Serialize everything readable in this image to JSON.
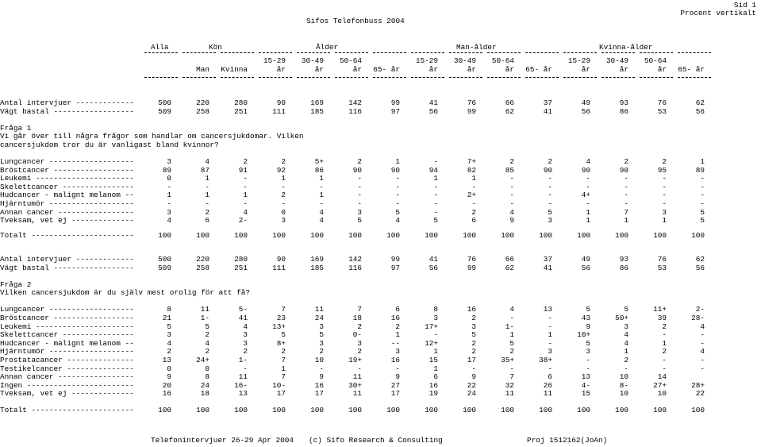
{
  "header": {
    "page_number": "Sid 1",
    "percent_label": "Procent vertikalt",
    "title": "Sifos Telefonbuss 2004"
  },
  "colgroups": {
    "alla": "Alla",
    "kon": "Kön",
    "alder": "Ålder",
    "man_alder": "Man-ålder",
    "kvinna_alder": "Kvinna-ålder"
  },
  "columns_top": [
    "",
    "",
    "",
    "15-29",
    "30-49",
    "50-64",
    "",
    "15-29",
    "30-49",
    "50-64",
    "",
    "15-29",
    "30-49",
    "50-64",
    ""
  ],
  "columns_bottom": [
    "",
    "Man",
    "Kvinna",
    "år",
    "år",
    "år",
    "65- år",
    "år",
    "år",
    "år",
    "65- år",
    "år",
    "år",
    "år",
    "65- år"
  ],
  "q1": {
    "intervjuer_label": "Antal intervjuer -------------",
    "intervjuer": [
      "500",
      "220",
      "280",
      "90",
      "169",
      "142",
      "99",
      "41",
      "76",
      "66",
      "37",
      "49",
      "93",
      "76",
      "62"
    ],
    "vagt_label": "Vägt bastal ------------------",
    "vagt": [
      "509",
      "258",
      "251",
      "111",
      "185",
      "116",
      "97",
      "56",
      "99",
      "62",
      "41",
      "56",
      "86",
      "53",
      "56"
    ],
    "fraga": "Fråga 1",
    "text1": "Vi går över till några frågor som handlar om cancersjukdomar. Vilken",
    "text2": "cancersjukdom tror du är vanligast bland kvinnor?",
    "rows": [
      {
        "label": "Lungcancer -------------------",
        "values": [
          "3",
          "4",
          "2",
          "2",
          "5+",
          "2",
          "1",
          "-",
          "7+",
          "2",
          "2",
          "4",
          "2",
          "2",
          "1"
        ]
      },
      {
        "label": "Bröstcancer ------------------",
        "values": [
          "89",
          "87",
          "91",
          "92",
          "86",
          "90",
          "90",
          "94",
          "82",
          "85",
          "90",
          "90",
          "90",
          "95",
          "89"
        ]
      },
      {
        "label": "Leukemi ----------------------",
        "values": [
          "0",
          "1",
          "-",
          "1",
          "1",
          "-",
          "-",
          "1",
          "1",
          "-",
          "-",
          "-",
          "-",
          "-",
          "-"
        ]
      },
      {
        "label": "Skelettcancer ----------------",
        "values": [
          "-",
          "-",
          "-",
          "-",
          "-",
          "-",
          "-",
          "-",
          "-",
          "-",
          "-",
          "-",
          "-",
          "-",
          "-"
        ]
      },
      {
        "label": "Hudcancer - malignt melanom --",
        "values": [
          "1",
          "1",
          "1",
          "2",
          "1",
          "-",
          "-",
          "-",
          "2+",
          "-",
          "-",
          "4+",
          "-",
          "-",
          "-"
        ]
      },
      {
        "label": "Hjärntumör -------------------",
        "values": [
          "-",
          "-",
          "-",
          "-",
          "-",
          "-",
          "-",
          "-",
          "-",
          "-",
          "-",
          "-",
          "-",
          "-",
          "-"
        ]
      },
      {
        "label": "Annan cancer -----------------",
        "values": [
          "3",
          "2",
          "4",
          "0",
          "4",
          "3",
          "5",
          "-",
          "2",
          "4",
          "5",
          "1",
          "7",
          "3",
          "5"
        ]
      },
      {
        "label": "Tveksam, vet ej --------------",
        "values": [
          "4",
          "6",
          "2-",
          "3",
          "4",
          "5",
          "4",
          "5",
          "6",
          "9",
          "3",
          "1",
          "1",
          "1",
          "5"
        ]
      }
    ],
    "totalt_label": "Totalt -----------------------",
    "totalt": [
      "100",
      "100",
      "100",
      "100",
      "100",
      "100",
      "100",
      "100",
      "100",
      "100",
      "100",
      "100",
      "100",
      "100",
      "100"
    ]
  },
  "q2": {
    "intervjuer_label": "Antal intervjuer -------------",
    "intervjuer": [
      "500",
      "220",
      "280",
      "90",
      "169",
      "142",
      "99",
      "41",
      "76",
      "66",
      "37",
      "49",
      "93",
      "76",
      "62"
    ],
    "vagt_label": "Vägt bastal ------------------",
    "vagt": [
      "509",
      "258",
      "251",
      "111",
      "185",
      "116",
      "97",
      "56",
      "99",
      "62",
      "41",
      "56",
      "86",
      "53",
      "56"
    ],
    "fraga": "Fråga 2",
    "text1": "Vilken cancersjukdom är du själv mest orolig för att få?",
    "rows": [
      {
        "label": "Lungcancer -------------------",
        "values": [
          "8",
          "11",
          "5-",
          "7",
          "11",
          "7",
          "6",
          "8",
          "16",
          "4",
          "13",
          "5",
          "5",
          "11+",
          "2-"
        ]
      },
      {
        "label": "Bröstcancer ------------------",
        "values": [
          "21",
          "1-",
          "41",
          "23",
          "24",
          "18",
          "16",
          "3",
          "2",
          "-",
          "-",
          "43",
          "50+",
          "39",
          "28-"
        ]
      },
      {
        "label": "Leukemi ----------------------",
        "values": [
          "5",
          "5",
          "4",
          "13+",
          "3",
          "2",
          "2",
          "17+",
          "3",
          "1-",
          "-",
          "9",
          "3",
          "2",
          "4"
        ]
      },
      {
        "label": "Skelettcancer ----------------",
        "values": [
          "3",
          "2",
          "3",
          "5",
          "5",
          "0-",
          "1",
          "-",
          "5",
          "1",
          "1",
          "10+",
          "4",
          "-",
          "-"
        ]
      },
      {
        "label": "Hudcancer - malignt melanom --",
        "values": [
          "4",
          "4",
          "3",
          "8+",
          "3",
          "3",
          "--",
          "12+",
          "2",
          "5",
          "-",
          "5",
          "4",
          "1",
          "-"
        ]
      },
      {
        "label": "Hjärntumör -------------------",
        "values": [
          "2",
          "2",
          "2",
          "2",
          "2",
          "2",
          "3",
          "1",
          "2",
          "2",
          "3",
          "3",
          "1",
          "2",
          "4"
        ]
      },
      {
        "label": "Prostatacancer ---------------",
        "values": [
          "13",
          "24+",
          "1-",
          "7",
          "10",
          "19+",
          "16",
          "15",
          "17",
          "35+",
          "38+",
          "-",
          "2",
          "-",
          "-"
        ]
      },
      {
        "label": "Testikelcancer ---------------",
        "values": [
          "0",
          "0",
          "-",
          "1",
          "-",
          "-",
          "-",
          "1",
          "-",
          "-",
          "-",
          "-",
          "-",
          "-",
          "-"
        ]
      },
      {
        "label": "Annan cancer -----------------",
        "values": [
          "9",
          "8",
          "11",
          "7",
          "9",
          "11",
          "9",
          "6",
          "9",
          "7",
          "6",
          "13",
          "10",
          "14",
          ""
        ]
      },
      {
        "label": "Ingen ------------------------",
        "values": [
          "20",
          "24",
          "16-",
          "10-",
          "16",
          "30+",
          "27",
          "16",
          "22",
          "32",
          "26",
          "4-",
          "8-",
          "27+",
          "28+"
        ]
      },
      {
        "label": "Tveksam, vet ej --------------",
        "values": [
          "16",
          "18",
          "13",
          "17",
          "17",
          "11",
          "17",
          "19",
          "24",
          "11",
          "11",
          "15",
          "10",
          "10",
          "22"
        ]
      }
    ],
    "totalt_label": "Totalt -----------------------",
    "totalt": [
      "100",
      "100",
      "100",
      "100",
      "100",
      "100",
      "100",
      "100",
      "100",
      "100",
      "100",
      "100",
      "100",
      "100",
      "100"
    ]
  },
  "footer": {
    "left": "Telefonintervjuer 26-29 Apr 2004",
    "middle": "(c) Sifo Research & Consulting",
    "right": "Proj 1512162(JoAn)"
  }
}
